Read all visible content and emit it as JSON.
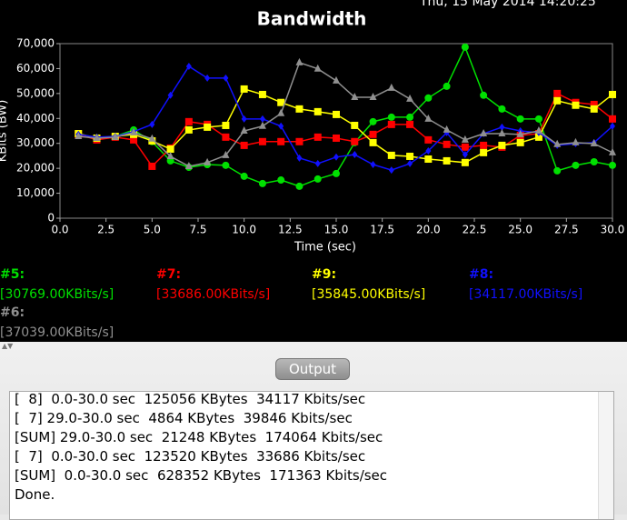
{
  "header": {
    "timestamp": "Thu, 15 May 2014 14:20:25"
  },
  "chart_data": {
    "type": "line",
    "title": "Bandwidth",
    "x_label": "Time (sec)",
    "y_label": "KBits (BW)",
    "x": [
      1,
      2,
      3,
      4,
      5,
      6,
      7,
      8,
      9,
      10,
      11,
      12,
      13,
      14,
      15,
      16,
      17,
      18,
      19,
      20,
      21,
      22,
      23,
      24,
      25,
      26,
      27,
      28,
      29,
      30
    ],
    "xlim": [
      0,
      30
    ],
    "xticks": [
      {
        "value": 0,
        "label": "0.0"
      },
      2.5,
      {
        "value": 5,
        "label": "5.0"
      },
      7.5,
      {
        "value": 10,
        "label": "10.0"
      },
      12.5,
      {
        "value": 15,
        "label": "15.0"
      },
      17.5,
      {
        "value": 20,
        "label": "20.0"
      },
      22.5,
      {
        "value": 25,
        "label": "25.0"
      },
      27.5,
      {
        "value": 30,
        "label": "30.0"
      }
    ],
    "ylim": [
      0,
      70000
    ],
    "yticks": [
      0,
      {
        "value": 10000,
        "label": "10,000"
      },
      {
        "value": 20000,
        "label": "20,000"
      },
      {
        "value": 30000,
        "label": "30,000"
      },
      {
        "value": 40000,
        "label": "40,000"
      },
      {
        "value": 50000,
        "label": "50,000"
      },
      {
        "value": 60000,
        "label": "60,000"
      },
      {
        "value": 70000,
        "label": "70,000"
      }
    ],
    "series": [
      {
        "name": "#5:",
        "current": "[30769.00KBits/s]",
        "color": "#00e000",
        "marker": "circle",
        "values": [
          33200,
          32100,
          32800,
          35400,
          30700,
          23000,
          20400,
          21500,
          21200,
          16800,
          13900,
          15300,
          12800,
          15700,
          17900,
          30300,
          38700,
          40500,
          40500,
          48200,
          52900,
          68600,
          49300,
          43800,
          39800,
          39800,
          19000,
          21200,
          22600,
          21200
        ]
      },
      {
        "name": "#7:",
        "current": "[33686.00KBits/s]",
        "color": "#ff0000",
        "marker": "square",
        "values": [
          33600,
          31400,
          32500,
          31400,
          20800,
          28100,
          38700,
          37600,
          32500,
          29200,
          30700,
          30700,
          30700,
          32500,
          32100,
          30700,
          33600,
          37600,
          37600,
          31400,
          29600,
          28500,
          29200,
          28500,
          33200,
          33900,
          50000,
          46400,
          45600,
          39800
        ]
      },
      {
        "name": "#9:",
        "current": "[35845.00KBits/s]",
        "color": "#ffff00",
        "marker": "square",
        "values": [
          33900,
          32100,
          32800,
          33600,
          31000,
          27700,
          35400,
          36500,
          37200,
          51800,
          49600,
          46400,
          43800,
          42700,
          41600,
          37200,
          30300,
          25200,
          24800,
          23700,
          23000,
          22300,
          26300,
          29200,
          30300,
          32500,
          47100,
          45300,
          43800,
          49600
        ]
      },
      {
        "name": "#8:",
        "current": "[34117.00KBits/s]",
        "color": "#1010ff",
        "marker": "diamond",
        "values": [
          33600,
          32500,
          32800,
          34700,
          37600,
          49300,
          60900,
          56200,
          56200,
          39800,
          39800,
          36900,
          24100,
          21900,
          24500,
          25500,
          21500,
          19300,
          21900,
          27000,
          34300,
          25500,
          33900,
          36500,
          35000,
          34300,
          29200,
          29900,
          30300,
          36900
        ]
      },
      {
        "name": "#6:",
        "current": "[37039.00KBits/s]",
        "color": "#909090",
        "marker": "triangle",
        "values": [
          32800,
          32100,
          32500,
          34300,
          31800,
          24800,
          20800,
          22300,
          25200,
          35000,
          36900,
          42000,
          62400,
          59900,
          55100,
          48500,
          48500,
          52200,
          47800,
          39800,
          35400,
          31400,
          33900,
          33900,
          33600,
          35000,
          29600,
          30300,
          29900,
          26300
        ]
      }
    ]
  },
  "output": {
    "title": "Output",
    "lines": [
      "[  8]  0.0-30.0 sec  125056 KBytes  34117 Kbits/sec",
      "[  7] 29.0-30.0 sec  4864 KBytes  39846 Kbits/sec",
      "[SUM] 29.0-30.0 sec  21248 KBytes  174064 Kbits/sec",
      "[  7]  0.0-30.0 sec  123520 KBytes  33686 Kbits/sec",
      "[SUM]  0.0-30.0 sec  628352 KBytes  171363 Kbits/sec",
      "Done."
    ]
  }
}
